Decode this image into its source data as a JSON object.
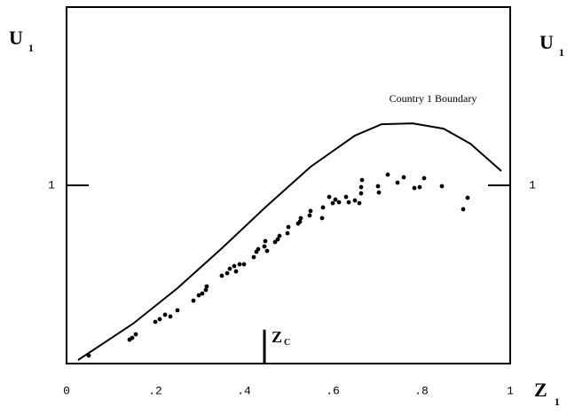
{
  "chart_data": {
    "type": "scatter",
    "y_label": {
      "main": "U",
      "sub": "1"
    },
    "y2_label": {
      "main": "U",
      "sub": "1"
    },
    "x_label": {
      "main": "Z",
      "sub": "1"
    },
    "xlim": [
      0,
      1
    ],
    "ylim": [
      0,
      2
    ],
    "y2lim": [
      0,
      2
    ],
    "xticks": [
      0,
      {
        "value": 0.2,
        "label": ".2"
      },
      {
        "value": 0.4,
        "label": ".4"
      },
      {
        "value": 0.6,
        "label": ".6"
      },
      {
        "value": 0.8,
        "label": ".8"
      },
      1
    ],
    "yticks": [
      1
    ],
    "y2ticks": [
      1
    ],
    "color": "#000000",
    "boundary": {
      "name": "Country 1 Boundary",
      "x": [
        0.026,
        0.15,
        0.25,
        0.35,
        0.45,
        0.55,
        0.65,
        0.71,
        0.78,
        0.85,
        0.91,
        0.98
      ],
      "y": [
        0.02,
        0.224,
        0.423,
        0.647,
        0.881,
        1.104,
        1.279,
        1.343,
        1.348,
        1.318,
        1.234,
        1.08
      ]
    },
    "marker": {
      "label": {
        "main": "Z",
        "sub": "C"
      },
      "x": 0.446,
      "y": 0.19
    },
    "x": [
      0.05,
      0.142,
      0.148,
      0.156,
      0.2,
      0.21,
      0.222,
      0.234,
      0.25,
      0.286,
      0.298,
      0.306,
      0.314,
      0.316,
      0.35,
      0.362,
      0.368,
      0.378,
      0.382,
      0.39,
      0.4,
      0.422,
      0.428,
      0.432,
      0.446,
      0.448,
      0.452,
      0.47,
      0.476,
      0.48,
      0.498,
      0.5,
      0.522,
      0.526,
      0.528,
      0.548,
      0.55,
      0.576,
      0.578,
      0.592,
      0.6,
      0.606,
      0.614,
      0.63,
      0.636,
      0.65,
      0.66,
      0.664,
      0.666,
      0.664,
      0.702,
      0.704,
      0.724,
      0.746,
      0.76,
      0.784,
      0.796,
      0.806,
      0.846,
      0.894,
      0.904
    ],
    "y": [
      0.045,
      0.134,
      0.144,
      0.164,
      0.234,
      0.249,
      0.274,
      0.264,
      0.299,
      0.353,
      0.383,
      0.393,
      0.413,
      0.433,
      0.493,
      0.507,
      0.532,
      0.547,
      0.517,
      0.557,
      0.557,
      0.597,
      0.627,
      0.642,
      0.657,
      0.687,
      0.632,
      0.682,
      0.697,
      0.716,
      0.731,
      0.766,
      0.786,
      0.796,
      0.816,
      0.831,
      0.856,
      0.816,
      0.876,
      0.935,
      0.9,
      0.92,
      0.905,
      0.935,
      0.905,
      0.915,
      0.9,
      0.955,
      1.03,
      0.99,
      0.995,
      0.96,
      1.06,
      1.015,
      1.045,
      0.985,
      0.99,
      1.04,
      0.995,
      0.866,
      0.93
    ]
  }
}
